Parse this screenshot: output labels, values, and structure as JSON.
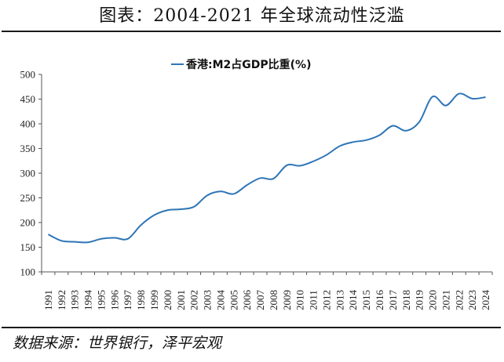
{
  "header": {
    "title": "图表：2004-2021 年全球流动性泛滥"
  },
  "footer": {
    "source": "数据来源：世界银行，泽平宏观"
  },
  "chart_data": {
    "type": "line",
    "title": "",
    "xlabel": "",
    "ylabel": "",
    "ylim": [
      100,
      500
    ],
    "yticks": [
      100,
      150,
      200,
      250,
      300,
      350,
      400,
      450,
      500
    ],
    "grid": false,
    "legend_position": "top-center",
    "x": [
      "1991",
      "1992",
      "1993",
      "1994",
      "1995",
      "1996",
      "1997",
      "1998",
      "1999",
      "2000",
      "2001",
      "2002",
      "2003",
      "2004",
      "2005",
      "2006",
      "2007",
      "2008",
      "2009",
      "2010",
      "2011",
      "2012",
      "2013",
      "2014",
      "2015",
      "2016",
      "2017",
      "2018",
      "2019",
      "2020",
      "2021",
      "2022",
      "2023",
      "2024"
    ],
    "series": [
      {
        "name": "香港:M2占GDP比重(%)",
        "color": "#2e75b6",
        "values": [
          176,
          163,
          161,
          160,
          167,
          169,
          167,
          195,
          215,
          225,
          227,
          232,
          255,
          263,
          258,
          276,
          290,
          289,
          316,
          315,
          324,
          337,
          355,
          363,
          367,
          377,
          396,
          386,
          404,
          455,
          437,
          461,
          451,
          454
        ]
      }
    ]
  }
}
